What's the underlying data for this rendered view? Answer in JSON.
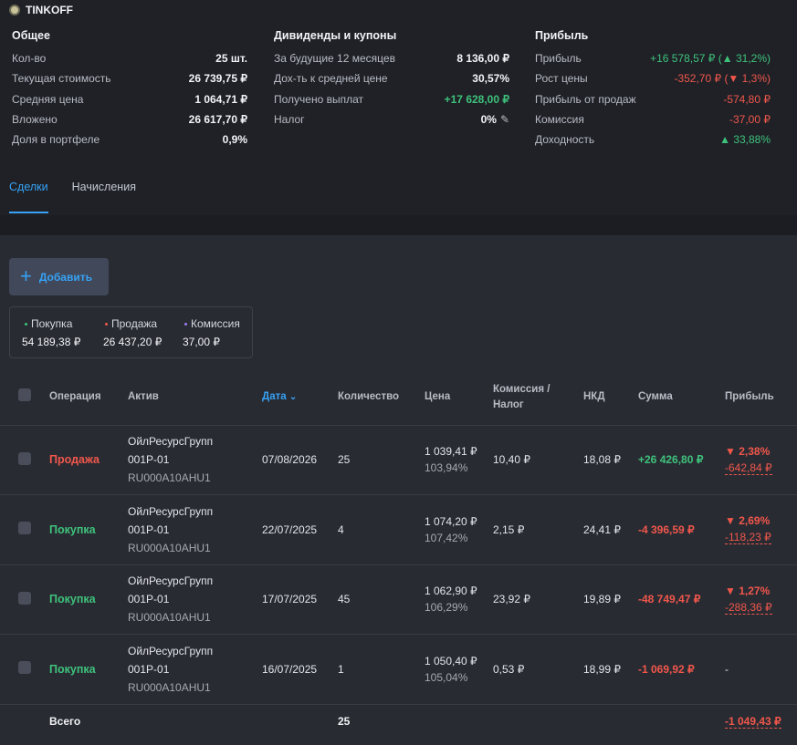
{
  "broker": {
    "name": "TINKOFF"
  },
  "general": {
    "title": "Общее",
    "rows": [
      {
        "label": "Кол-во",
        "value": "25 шт."
      },
      {
        "label": "Текущая стоимость",
        "value": "26 739,75 ₽"
      },
      {
        "label": "Средняя цена",
        "value": "1 064,71 ₽"
      },
      {
        "label": "Вложено",
        "value": "26 617,70 ₽"
      },
      {
        "label": "Доля в портфеле",
        "value": "0,9%"
      }
    ]
  },
  "dividends": {
    "title": "Дивиденды и купоны",
    "rows": [
      {
        "label": "За будущие 12 месяцев",
        "value": "8 136,00 ₽"
      },
      {
        "label": "Дох-ть к средней цене",
        "value": "30,57%"
      },
      {
        "label": "Получено выплат",
        "value": "+17 628,00 ₽"
      },
      {
        "label": "Налог",
        "value": "0%"
      }
    ]
  },
  "profit": {
    "title": "Прибыль",
    "rows": [
      {
        "label": "Прибыль",
        "value": "+16 578,57 ₽ (▲ 31,2%)"
      },
      {
        "label": "Рост цены",
        "value": "-352,70 ₽ (▼ 1,3%)"
      },
      {
        "label": "Прибыль от продаж",
        "value": "-574,80 ₽"
      },
      {
        "label": "Комиссия",
        "value": "-37,00 ₽"
      },
      {
        "label": "Доходность",
        "value": "▲ 33,88%"
      }
    ]
  },
  "tabs": [
    {
      "label": "Сделки"
    },
    {
      "label": "Начисления"
    }
  ],
  "add_button": {
    "label": "Добавить",
    "icon": "plus-icon"
  },
  "summary": [
    {
      "label": "Покупка",
      "value": "54 189,38 ₽",
      "color": "#3ec27b"
    },
    {
      "label": "Продажа",
      "value": "26 437,20 ₽",
      "color": "#f0574b"
    },
    {
      "label": "Комиссия",
      "value": "37,00 ₽",
      "color": "#9b7df0"
    }
  ],
  "table": {
    "headers": {
      "operation": "Операция",
      "asset": "Актив",
      "date": "Дата",
      "quantity": "Количество",
      "price": "Цена",
      "commission_1": "Комиссия /",
      "commission_2": "Налог",
      "nkd": "НКД",
      "sum": "Сумма",
      "profit": "Прибыль"
    },
    "rows": [
      {
        "operation": "Продажа",
        "asset_name": "ОйлРесурсГрупп",
        "asset_series": "001P-01",
        "isin": "RU000A10AHU1",
        "date": "07/08/2026",
        "quantity": "25",
        "price": "1 039,41 ₽",
        "price_pct": "103,94%",
        "commission": "10,40 ₽",
        "nkd": "18,08 ₽",
        "sum": "+26 426,80 ₽",
        "profit_pct": "▼ 2,38%",
        "profit_amount": "-642,84 ₽"
      },
      {
        "operation": "Покупка",
        "asset_name": "ОйлРесурсГрупп",
        "asset_series": "001P-01",
        "isin": "RU000A10AHU1",
        "date": "22/07/2025",
        "quantity": "4",
        "price": "1 074,20 ₽",
        "price_pct": "107,42%",
        "commission": "2,15 ₽",
        "nkd": "24,41 ₽",
        "sum": "-4 396,59 ₽",
        "profit_pct": "▼ 2,69%",
        "profit_amount": "-118,23 ₽"
      },
      {
        "operation": "Покупка",
        "asset_name": "ОйлРесурсГрупп",
        "asset_series": "001P-01",
        "isin": "RU000A10AHU1",
        "date": "17/07/2025",
        "quantity": "45",
        "price": "1 062,90 ₽",
        "price_pct": "106,29%",
        "commission": "23,92 ₽",
        "nkd": "19,89 ₽",
        "sum": "-48 749,47 ₽",
        "profit_pct": "▼ 1,27%",
        "profit_amount": "-288,36 ₽"
      },
      {
        "operation": "Покупка",
        "asset_name": "ОйлРесурсГрупп",
        "asset_series": "001P-01",
        "isin": "RU000A10AHU1",
        "date": "16/07/2025",
        "quantity": "1",
        "price": "1 050,40 ₽",
        "price_pct": "105,04%",
        "commission": "0,53 ₽",
        "nkd": "18,99 ₽",
        "sum": "-1 069,92 ₽",
        "profit_pct": "",
        "profit_amount": "-"
      }
    ],
    "total": {
      "label": "Всего",
      "quantity": "25",
      "profit": "-1 049,43 ₽"
    }
  }
}
